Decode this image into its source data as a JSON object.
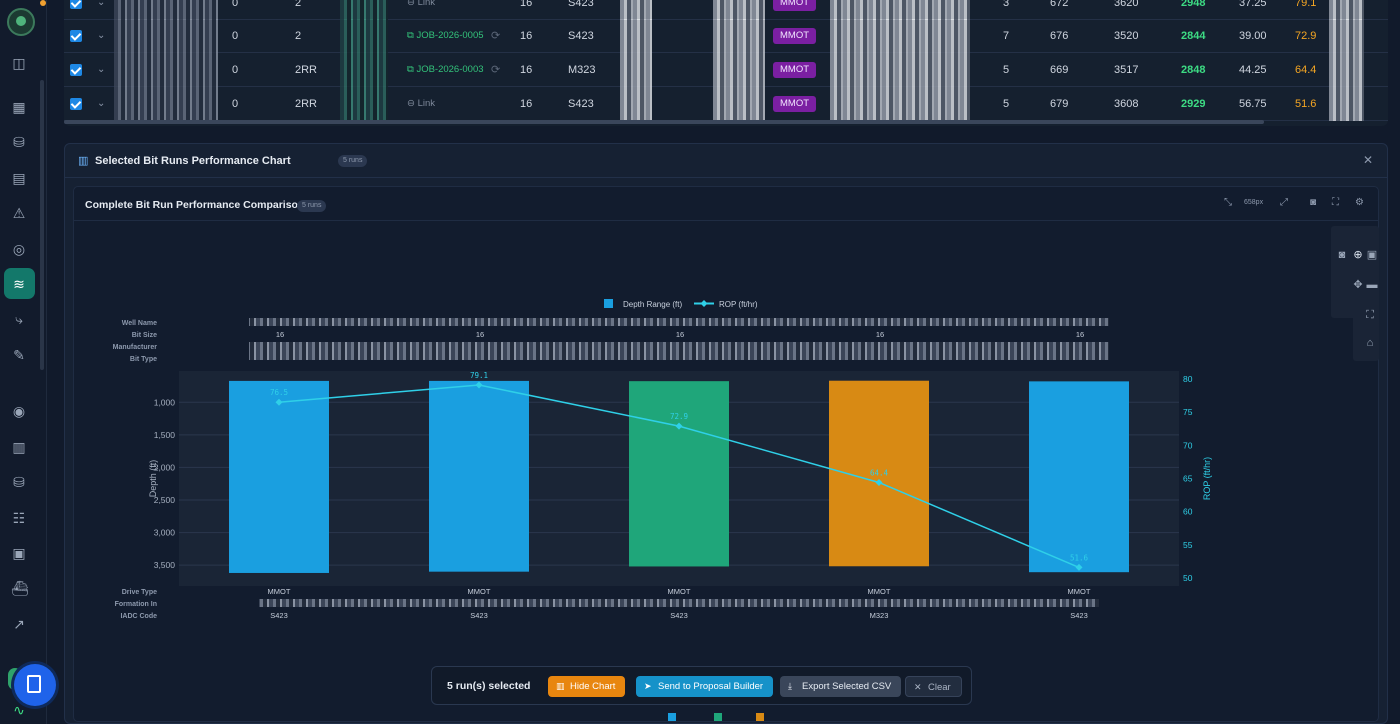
{
  "sidebar": {
    "icons": [
      "collapse-icon",
      "dashboard-icon",
      "database-icon",
      "table-icon",
      "alert-icon",
      "check-circle-icon",
      "layers-icon",
      "route-icon",
      "wrench-icon",
      "target-icon",
      "bar-chart-icon",
      "database-icon",
      "users-icon",
      "briefcase-icon",
      "ship-icon",
      "trending-icon"
    ],
    "active_index": 6
  },
  "table": {
    "rows": [
      {
        "col_a": "0",
        "col_b": "2",
        "job": "Link",
        "job_type": "link",
        "bit": "16",
        "iadc": "S423",
        "drive": "MMOT",
        "c1": "3",
        "c2": "672",
        "c3": "3620",
        "c4": "2948",
        "c5": "37.25",
        "c6": "79.1"
      },
      {
        "col_a": "0",
        "col_b": "2",
        "job": "JOB-2026-0005",
        "job_type": "job",
        "bit": "16",
        "iadc": "S423",
        "drive": "MMOT",
        "c1": "7",
        "c2": "676",
        "c3": "3520",
        "c4": "2844",
        "c5": "39.00",
        "c6": "72.9"
      },
      {
        "col_a": "0",
        "col_b": "2RR",
        "job": "JOB-2026-0003",
        "job_type": "job",
        "bit": "16",
        "iadc": "M323",
        "drive": "MMOT",
        "c1": "5",
        "c2": "669",
        "c3": "3517",
        "c4": "2848",
        "c5": "44.25",
        "c6": "64.4"
      },
      {
        "col_a": "0",
        "col_b": "2RR",
        "job": "Link",
        "job_type": "link",
        "bit": "16",
        "iadc": "S423",
        "drive": "MMOT",
        "c1": "5",
        "c2": "679",
        "c3": "3608",
        "c4": "2929",
        "c5": "56.75",
        "c6": "51.6"
      }
    ]
  },
  "panel": {
    "title": "Selected Bit Runs Performance Chart",
    "badge": "5 runs",
    "card_title": "Complete Bit Run Performance Comparison",
    "card_badge": "5 runs",
    "height_label": "658px"
  },
  "chart_data": {
    "type": "bar",
    "categories": [
      "S423",
      "S423",
      "S423",
      "M323",
      "S423"
    ],
    "legend": [
      "Depth Range (ft)",
      "ROP (ft/hr)"
    ],
    "colors": [
      "#1a9fe0",
      "#1a9fe0",
      "#1fa67a",
      "#d88a14",
      "#1a9fe0"
    ],
    "line_color": "#2fd0e8",
    "series": [
      {
        "name": "Depth Range (ft)",
        "type": "bar",
        "ranges": [
          [
            672,
            3620
          ],
          [
            672,
            3600
          ],
          [
            676,
            3520
          ],
          [
            669,
            3517
          ],
          [
            679,
            3608
          ]
        ]
      },
      {
        "name": "ROP (ft/hr)",
        "type": "line",
        "values": [
          76.5,
          79.1,
          72.9,
          64.4,
          51.6
        ]
      }
    ],
    "ylabel": "Depth (ft)",
    "y2label": "ROP (ft/hr)",
    "y_ticks": [
      "1,000",
      "1,500",
      "2,000",
      "2,500",
      "3,000",
      "3,500"
    ],
    "ylim": [
      520,
      3820
    ],
    "y2_ticks": [
      "80",
      "75",
      "70",
      "65",
      "60",
      "55",
      "50"
    ],
    "y2lim": [
      50,
      80
    ],
    "header_rows": {
      "labels": [
        "Well Name",
        "Bit Size",
        "Manufacturer",
        "Bit Type"
      ],
      "bit_size": [
        "16",
        "16",
        "16",
        "16",
        "16"
      ]
    },
    "footer_rows": {
      "labels": [
        "Drive Type",
        "Formation In",
        "IADC Code"
      ],
      "drive_type": [
        "MMOT",
        "MMOT",
        "MMOT",
        "MMOT",
        "MMOT"
      ],
      "iadc_code": [
        "S423",
        "S423",
        "S423",
        "M323",
        "S423"
      ]
    },
    "legend_placement": "top-center",
    "grid": true
  },
  "actions": {
    "selected": "5 run(s) selected",
    "hide_chart": "Hide Chart",
    "send": "Send to Proposal Builder",
    "export": "Export Selected CSV",
    "clear": "Clear"
  }
}
